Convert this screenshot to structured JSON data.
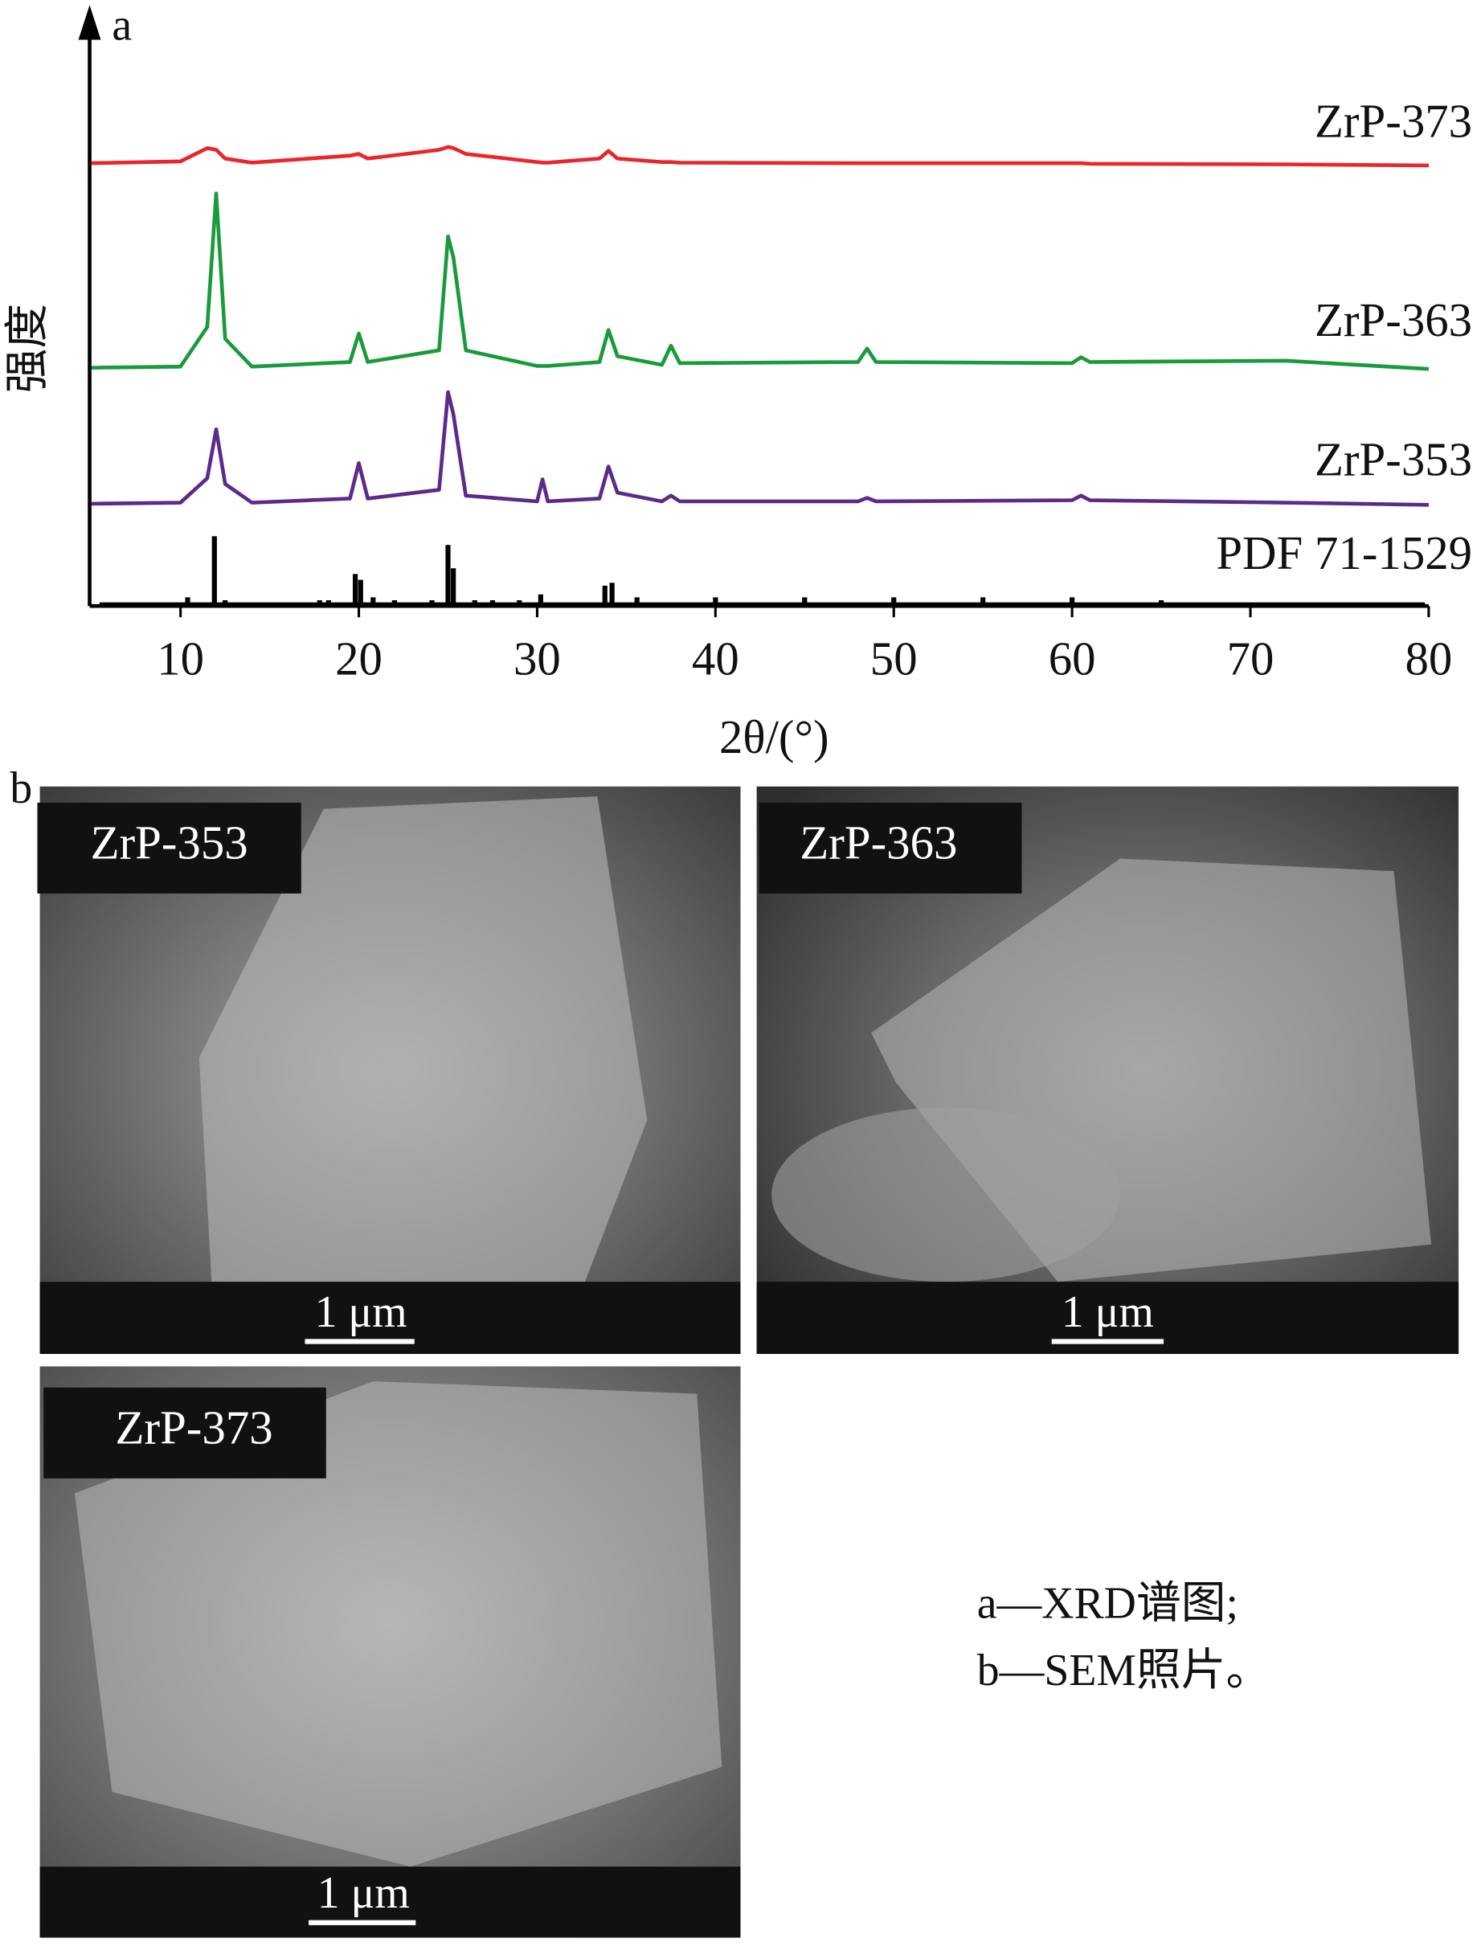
{
  "chart_data": {
    "type": "line",
    "panel_label": "a",
    "ylabel": "强度",
    "xlabel": "2θ/(°)",
    "xlim": [
      5,
      80
    ],
    "xticks": [
      10,
      20,
      30,
      40,
      50,
      60,
      70,
      80
    ],
    "ylim": [
      0,
      100
    ],
    "x": [
      5,
      10,
      11.5,
      12,
      12.5,
      14,
      19.5,
      20,
      20.5,
      24.5,
      25,
      25.3,
      26,
      30,
      30.3,
      30.6,
      33.5,
      34,
      34.5,
      37,
      37.5,
      38,
      48,
      48.5,
      49,
      60,
      60.5,
      61,
      72,
      80
    ],
    "series": [
      {
        "name": "ZrP-373",
        "color": "#e8262b",
        "values": [
          76.2,
          76.5,
          78.8,
          78.5,
          77,
          76.3,
          77.5,
          77.8,
          77,
          78.5,
          79,
          78.8,
          77.8,
          76.4,
          76.3,
          76.3,
          77,
          78.3,
          77,
          76.4,
          76.4,
          76.3,
          76.2,
          76.2,
          76.2,
          76.2,
          76.2,
          76.1,
          76,
          75.8
        ]
      },
      {
        "name": "ZrP-363",
        "color": "#1a9a3a",
        "values": [
          41,
          41.2,
          48,
          71,
          46,
          41.2,
          42,
          46.9,
          42,
          44,
          63.6,
          60,
          44,
          41.3,
          41.3,
          41.3,
          42,
          47.5,
          43,
          41.5,
          44.8,
          41.8,
          42,
          44.3,
          42,
          41.8,
          42.8,
          42,
          42.2,
          40.8
        ]
      },
      {
        "name": "ZrP-353",
        "color": "#5b2a8a",
        "values": [
          17.6,
          17.8,
          22,
          30.4,
          21,
          17.8,
          18.5,
          24.6,
          18.5,
          20,
          36.8,
          33,
          19,
          18,
          21.8,
          18,
          18.5,
          24,
          19.5,
          18,
          19,
          18,
          18,
          18.6,
          18,
          18.2,
          19,
          18.2,
          17.8,
          17.4
        ]
      },
      {
        "name": "PDF 71-1529",
        "color": "#000000",
        "style": "stick",
        "x": [
          10.4,
          11.9,
          12.5,
          17.8,
          18.3,
          19.8,
          20.1,
          20.8,
          22,
          24.1,
          25,
          25.3,
          26.5,
          27.5,
          29,
          30.2,
          33.8,
          34.2,
          35.6,
          40,
          45,
          50,
          55,
          60,
          65
        ],
        "values": [
          1.5,
          12,
          1,
          1,
          1,
          5.5,
          4.5,
          1.5,
          1,
          1,
          10.5,
          6.5,
          1,
          1,
          1,
          2,
          3.5,
          4,
          1.5,
          1.5,
          1.5,
          1.5,
          1.5,
          1.5,
          1
        ]
      }
    ]
  },
  "panel_b_label": "b",
  "sem_images": [
    {
      "label": "ZrP-353",
      "scale_bar": "1 μm"
    },
    {
      "label": "ZrP-363",
      "scale_bar": "1 μm"
    },
    {
      "label": "ZrP-373",
      "scale_bar": "1 μm"
    }
  ],
  "caption": [
    "a—XRD谱图;",
    "b—SEM照片。"
  ]
}
